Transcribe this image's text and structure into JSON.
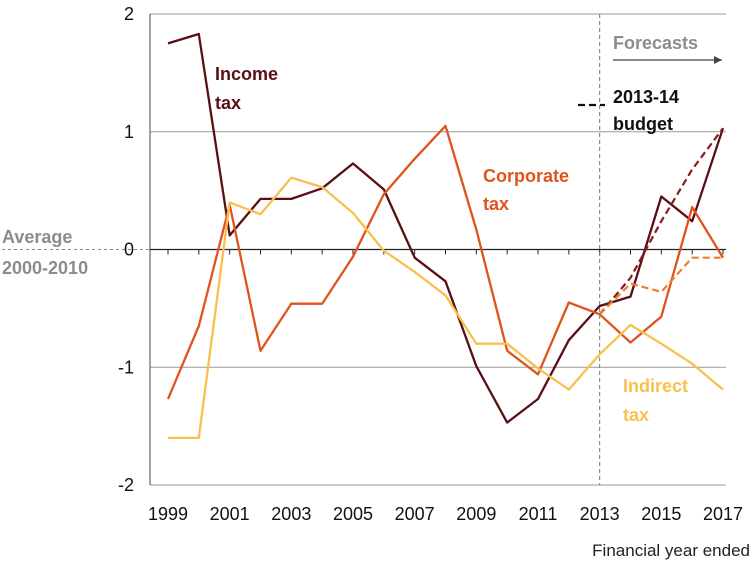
{
  "chart_data": {
    "type": "line",
    "title": "",
    "xlabel": "Financial year ended",
    "ylabel": "",
    "xlim": [
      1999,
      2017
    ],
    "ylim": [
      -2,
      2
    ],
    "x_ticks": [
      "1999",
      "2001",
      "2003",
      "2005",
      "2007",
      "2009",
      "2011",
      "2013",
      "2015",
      "2017"
    ],
    "y_ticks": [
      "2",
      "1",
      "0",
      "-1",
      "-2"
    ],
    "reference_line": {
      "label": "Average 2000-2010",
      "label_lines": [
        "Average",
        "2000-2010"
      ],
      "value": 0
    },
    "forecast": {
      "start": 2013,
      "label": "Forecasts"
    },
    "series": [
      {
        "name": "Income tax",
        "label_lines": [
          "Income",
          "tax"
        ],
        "color": "#5a0f14",
        "x": [
          1999,
          2000,
          2001,
          2002,
          2003,
          2004,
          2005,
          2006,
          2007,
          2008,
          2009,
          2010,
          2011,
          2012,
          2013,
          2014,
          2015,
          2016,
          2017
        ],
        "values": [
          1.75,
          1.83,
          0.12,
          0.43,
          0.43,
          0.52,
          0.73,
          0.51,
          -0.07,
          -0.27,
          -0.99,
          -1.47,
          -1.27,
          -0.77,
          -0.48,
          -0.4,
          0.45,
          0.24,
          1.03
        ]
      },
      {
        "name": "Corporate tax",
        "label_lines": [
          "Corporate",
          "tax"
        ],
        "color": "#e0531c",
        "x": [
          1999,
          2000,
          2001,
          2002,
          2003,
          2004,
          2005,
          2006,
          2007,
          2008,
          2009,
          2010,
          2011,
          2012,
          2013,
          2014,
          2015,
          2016,
          2017
        ],
        "values": [
          -1.27,
          -0.65,
          0.38,
          -0.86,
          -0.46,
          -0.46,
          -0.06,
          0.47,
          0.77,
          1.05,
          0.17,
          -0.86,
          -1.06,
          -0.45,
          -0.55,
          -0.79,
          -0.57,
          0.36,
          -0.07
        ]
      },
      {
        "name": "Indirect tax",
        "label_lines": [
          "Indirect",
          "tax"
        ],
        "color": "#fbbf4e",
        "x": [
          1999,
          2000,
          2001,
          2002,
          2003,
          2004,
          2005,
          2006,
          2007,
          2008,
          2009,
          2010,
          2011,
          2012,
          2013,
          2014,
          2015,
          2016,
          2017
        ],
        "values": [
          -1.6,
          -1.6,
          0.4,
          0.3,
          0.61,
          0.53,
          0.31,
          -0.01,
          -0.19,
          -0.39,
          -0.8,
          -0.8,
          -1.01,
          -1.19,
          -0.89,
          -0.64,
          -0.8,
          -0.97,
          -1.19
        ]
      }
    ],
    "budget_series": {
      "name": "2013-14 budget",
      "label_lines": [
        "2013-14",
        "budget"
      ],
      "lines": [
        {
          "of": "Income tax",
          "color": "#8b1a1e",
          "x": [
            2013,
            2014,
            2015,
            2016,
            2017
          ],
          "values": [
            -0.55,
            -0.24,
            0.24,
            0.68,
            1.03
          ]
        },
        {
          "of": "Corporate tax",
          "color": "#f07d2a",
          "x": [
            2013,
            2014,
            2015,
            2016,
            2017
          ],
          "values": [
            -0.55,
            -0.29,
            -0.36,
            -0.07,
            -0.07
          ]
        }
      ]
    },
    "grid": true
  }
}
